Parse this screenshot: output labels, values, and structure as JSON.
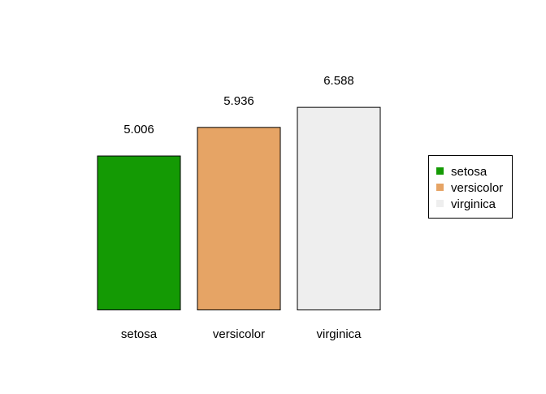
{
  "chart_data": {
    "type": "bar",
    "title": "",
    "xlabel": "",
    "ylabel": "",
    "categories": [
      "setosa",
      "versicolor",
      "virginica"
    ],
    "values": [
      5.006,
      5.936,
      6.588
    ],
    "value_labels": [
      "5.006",
      "5.936",
      "6.588"
    ],
    "colors": [
      "#149a04",
      "#e6a465",
      "#eeeeee"
    ],
    "bar_border_color": "#000000",
    "axes_visible": false,
    "grid": false,
    "legend": {
      "position": "right",
      "entries": [
        {
          "label": "setosa",
          "color": "#149a04"
        },
        {
          "label": "versicolor",
          "color": "#e6a465"
        },
        {
          "label": "virginica",
          "color": "#eeeeee"
        }
      ]
    }
  }
}
